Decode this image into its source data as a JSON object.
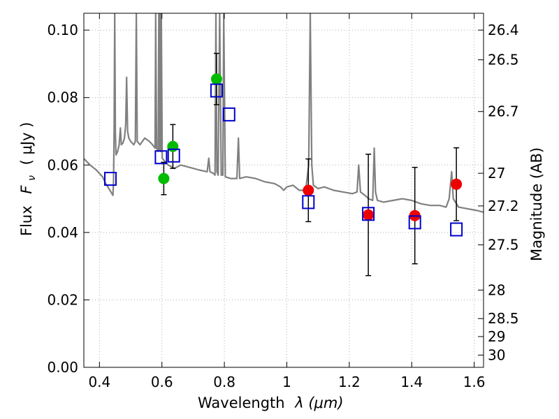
{
  "chart_data": {
    "type": "scatter",
    "xlabel": "Wavelength",
    "xlabel_symbol": "λ (μm)",
    "ylabel": "Flux",
    "ylabel_symbol": "F",
    "ylabel_subscript": "ν",
    "ylabel_unit": "( μJy )",
    "y2label": "Magnitude (AB)",
    "xlim": [
      0.35,
      1.63
    ],
    "ylim": [
      0.0,
      0.105
    ],
    "grid": true,
    "x_ticks": [
      "0.4",
      "0.6",
      "0.8",
      "1",
      "1.2",
      "1.4",
      "1.6"
    ],
    "y_ticks": [
      "0.00",
      "0.02",
      "0.04",
      "0.06",
      "0.08",
      "0.10"
    ],
    "y2_ticks": [
      "26.4",
      "26.5",
      "26.7",
      "27",
      "27.2",
      "27.5",
      "28",
      "28.5",
      "29",
      "30"
    ],
    "colors": {
      "template": "#808080",
      "model": "#0000cc",
      "obs_optical": "#00bb00",
      "obs_nir": "#ee0000",
      "errorbar": "#000000",
      "grid": "#b0b0b0"
    },
    "model_photometry": [
      {
        "x": 0.435,
        "y": 0.0559
      },
      {
        "x": 0.597,
        "y": 0.0623
      },
      {
        "x": 0.638,
        "y": 0.0628
      },
      {
        "x": 0.775,
        "y": 0.0821
      },
      {
        "x": 0.815,
        "y": 0.075
      },
      {
        "x": 1.069,
        "y": 0.049
      },
      {
        "x": 1.261,
        "y": 0.0455
      },
      {
        "x": 1.41,
        "y": 0.043
      },
      {
        "x": 1.543,
        "y": 0.0409
      }
    ],
    "observed_optical": [
      {
        "x": 0.606,
        "y": 0.056,
        "err": 0.0048
      },
      {
        "x": 0.635,
        "y": 0.0655,
        "err": 0.0065
      },
      {
        "x": 0.775,
        "y": 0.0855,
        "err": 0.0076
      }
    ],
    "observed_nir": [
      {
        "x": 1.069,
        "y": 0.0525,
        "err": 0.0093
      },
      {
        "x": 1.261,
        "y": 0.0452,
        "err": 0.018
      },
      {
        "x": 1.41,
        "y": 0.045,
        "err": 0.0143
      },
      {
        "x": 1.543,
        "y": 0.0543,
        "err": 0.0108
      }
    ],
    "template_spectrum": [
      [
        0.35,
        0.0619
      ],
      [
        0.37,
        0.06
      ],
      [
        0.39,
        0.0585
      ],
      [
        0.41,
        0.0565
      ],
      [
        0.42,
        0.0545
      ],
      [
        0.43,
        0.053
      ],
      [
        0.44,
        0.0515
      ],
      [
        0.443,
        0.051
      ],
      [
        0.445,
        0.055
      ],
      [
        0.447,
        0.07
      ],
      [
        0.449,
        0.105
      ],
      [
        0.451,
        0.07
      ],
      [
        0.453,
        0.063
      ],
      [
        0.458,
        0.064
      ],
      [
        0.463,
        0.066
      ],
      [
        0.467,
        0.071
      ],
      [
        0.47,
        0.066
      ],
      [
        0.475,
        0.0665
      ],
      [
        0.48,
        0.068
      ],
      [
        0.484,
        0.072
      ],
      [
        0.487,
        0.086
      ],
      [
        0.49,
        0.07
      ],
      [
        0.494,
        0.068
      ],
      [
        0.5,
        0.067
      ],
      [
        0.51,
        0.066
      ],
      [
        0.515,
        0.067
      ],
      [
        0.518,
        0.105
      ],
      [
        0.521,
        0.067
      ],
      [
        0.53,
        0.066
      ],
      [
        0.545,
        0.068
      ],
      [
        0.56,
        0.067
      ],
      [
        0.57,
        0.066
      ],
      [
        0.578,
        0.065
      ],
      [
        0.58,
        0.105
      ],
      [
        0.583,
        0.065
      ],
      [
        0.588,
        0.064
      ],
      [
        0.59,
        0.105
      ],
      [
        0.592,
        0.0645
      ],
      [
        0.594,
        0.105
      ],
      [
        0.596,
        0.064
      ],
      [
        0.598,
        0.105
      ],
      [
        0.601,
        0.062
      ],
      [
        0.61,
        0.061
      ],
      [
        0.62,
        0.06
      ],
      [
        0.64,
        0.059
      ],
      [
        0.66,
        0.06
      ],
      [
        0.68,
        0.0595
      ],
      [
        0.7,
        0.059
      ],
      [
        0.72,
        0.0585
      ],
      [
        0.745,
        0.058
      ],
      [
        0.75,
        0.062
      ],
      [
        0.754,
        0.058
      ],
      [
        0.765,
        0.0575
      ],
      [
        0.77,
        0.057
      ],
      [
        0.773,
        0.105
      ],
      [
        0.776,
        0.058
      ],
      [
        0.78,
        0.057
      ],
      [
        0.785,
        0.105
      ],
      [
        0.79,
        0.057
      ],
      [
        0.795,
        0.057
      ],
      [
        0.798,
        0.105
      ],
      [
        0.803,
        0.0565
      ],
      [
        0.82,
        0.056
      ],
      [
        0.84,
        0.056
      ],
      [
        0.845,
        0.068
      ],
      [
        0.849,
        0.056
      ],
      [
        0.87,
        0.0565
      ],
      [
        0.9,
        0.056
      ],
      [
        0.93,
        0.055
      ],
      [
        0.96,
        0.0545
      ],
      [
        0.98,
        0.0535
      ],
      [
        0.99,
        0.0525
      ],
      [
        1.0,
        0.0535
      ],
      [
        1.02,
        0.054
      ],
      [
        1.04,
        0.0525
      ],
      [
        1.06,
        0.0525
      ],
      [
        1.065,
        0.056
      ],
      [
        1.07,
        0.06
      ],
      [
        1.075,
        0.105
      ],
      [
        1.08,
        0.06
      ],
      [
        1.085,
        0.054
      ],
      [
        1.1,
        0.053
      ],
      [
        1.12,
        0.0535
      ],
      [
        1.15,
        0.0525
      ],
      [
        1.18,
        0.052
      ],
      [
        1.21,
        0.0515
      ],
      [
        1.225,
        0.052
      ],
      [
        1.23,
        0.06
      ],
      [
        1.236,
        0.052
      ],
      [
        1.25,
        0.051
      ],
      [
        1.262,
        0.05
      ],
      [
        1.275,
        0.0495
      ],
      [
        1.28,
        0.065
      ],
      [
        1.284,
        0.052
      ],
      [
        1.29,
        0.0495
      ],
      [
        1.31,
        0.049
      ],
      [
        1.34,
        0.0495
      ],
      [
        1.37,
        0.05
      ],
      [
        1.4,
        0.0495
      ],
      [
        1.43,
        0.0485
      ],
      [
        1.46,
        0.048
      ],
      [
        1.49,
        0.048
      ],
      [
        1.51,
        0.0475
      ],
      [
        1.52,
        0.05
      ],
      [
        1.528,
        0.058
      ],
      [
        1.533,
        0.05
      ],
      [
        1.55,
        0.0475
      ],
      [
        1.58,
        0.047
      ],
      [
        1.61,
        0.0465
      ],
      [
        1.63,
        0.046
      ]
    ]
  }
}
